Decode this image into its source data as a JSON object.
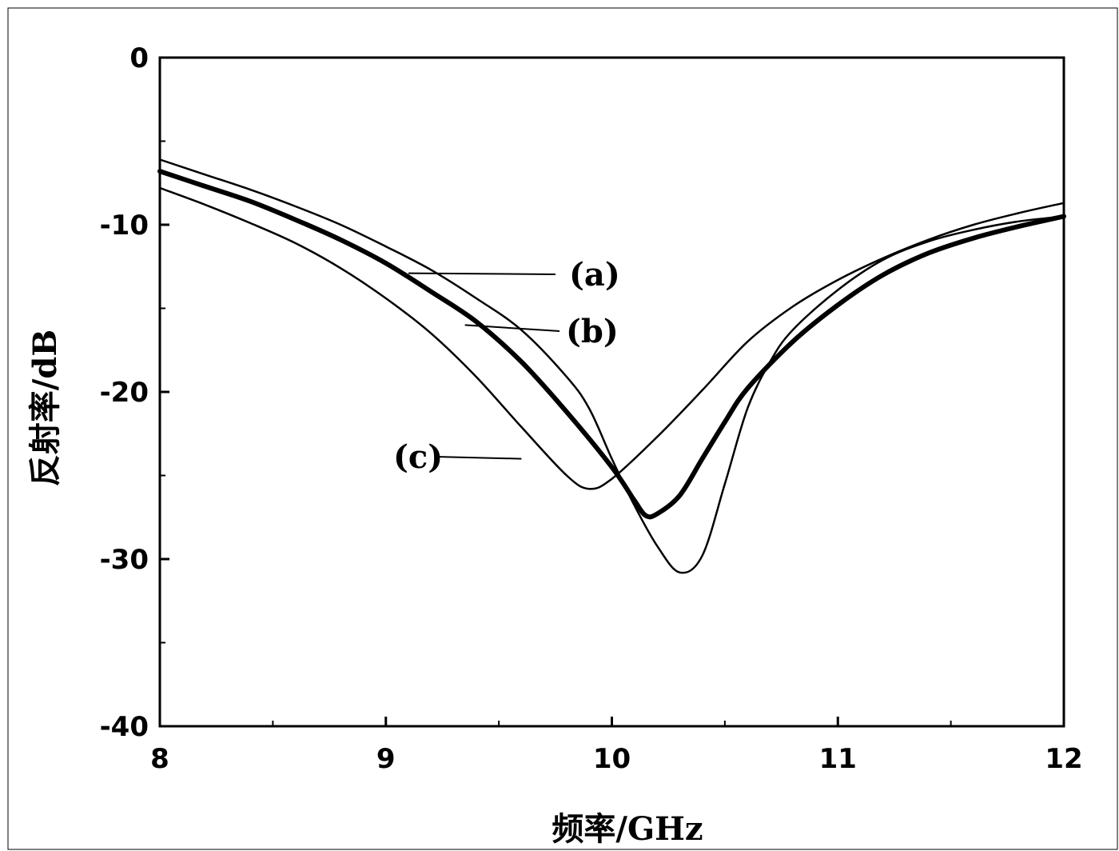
{
  "chart_data": {
    "type": "line",
    "title": "",
    "xlabel": "频率/GHz",
    "ylabel": "反射率/dB",
    "xlim": [
      8,
      12
    ],
    "ylim": [
      -40,
      0
    ],
    "x_ticks": [
      8,
      9,
      10,
      11,
      12
    ],
    "x_tick_labels": [
      "8",
      "9",
      "10",
      "11",
      "12"
    ],
    "y_ticks": [
      0,
      -10,
      -20,
      -30,
      -40
    ],
    "y_tick_labels": [
      "0",
      "-10",
      "-20",
      "-30",
      "-40"
    ],
    "grid": false,
    "legend": "none",
    "series": [
      {
        "name": "(a)",
        "color": "#000000",
        "style": "thin",
        "label_anchor": [
          9.1,
          -12.9
        ],
        "points": [
          [
            8.0,
            -6.1
          ],
          [
            8.2,
            -7.0
          ],
          [
            8.4,
            -7.9
          ],
          [
            8.6,
            -8.9
          ],
          [
            8.8,
            -10.0
          ],
          [
            9.0,
            -11.3
          ],
          [
            9.2,
            -12.7
          ],
          [
            9.4,
            -14.4
          ],
          [
            9.6,
            -16.3
          ],
          [
            9.8,
            -19.1
          ],
          [
            9.9,
            -21.0
          ],
          [
            10.0,
            -24.0
          ],
          [
            10.1,
            -26.8
          ],
          [
            10.2,
            -29.2
          ],
          [
            10.3,
            -30.8
          ],
          [
            10.4,
            -29.8
          ],
          [
            10.5,
            -25.5
          ],
          [
            10.6,
            -21.0
          ],
          [
            10.7,
            -18.2
          ],
          [
            10.8,
            -16.3
          ],
          [
            11.0,
            -13.9
          ],
          [
            11.2,
            -12.1
          ],
          [
            11.4,
            -11.0
          ],
          [
            11.6,
            -10.3
          ],
          [
            11.8,
            -9.8
          ],
          [
            12.0,
            -9.5
          ]
        ]
      },
      {
        "name": "(b)",
        "color": "#000000",
        "style": "thick",
        "label_anchor": [
          9.35,
          -16.0
        ],
        "points": [
          [
            8.0,
            -6.8
          ],
          [
            8.2,
            -7.7
          ],
          [
            8.4,
            -8.6
          ],
          [
            8.6,
            -9.7
          ],
          [
            8.8,
            -10.9
          ],
          [
            9.0,
            -12.3
          ],
          [
            9.2,
            -14.0
          ],
          [
            9.4,
            -15.8
          ],
          [
            9.6,
            -18.2
          ],
          [
            9.8,
            -21.2
          ],
          [
            10.0,
            -24.5
          ],
          [
            10.1,
            -26.5
          ],
          [
            10.15,
            -27.4
          ],
          [
            10.2,
            -27.3
          ],
          [
            10.3,
            -26.2
          ],
          [
            10.4,
            -24.0
          ],
          [
            10.5,
            -21.8
          ],
          [
            10.6,
            -19.8
          ],
          [
            10.8,
            -17.0
          ],
          [
            11.0,
            -14.8
          ],
          [
            11.2,
            -13.0
          ],
          [
            11.4,
            -11.7
          ],
          [
            11.6,
            -10.8
          ],
          [
            11.8,
            -10.1
          ],
          [
            12.0,
            -9.5
          ]
        ]
      },
      {
        "name": "(c)",
        "color": "#000000",
        "style": "thin",
        "label_anchor": [
          9.6,
          -24.0
        ],
        "points": [
          [
            8.0,
            -7.8
          ],
          [
            8.2,
            -8.8
          ],
          [
            8.4,
            -9.9
          ],
          [
            8.6,
            -11.1
          ],
          [
            8.8,
            -12.6
          ],
          [
            9.0,
            -14.4
          ],
          [
            9.2,
            -16.5
          ],
          [
            9.4,
            -19.1
          ],
          [
            9.6,
            -22.1
          ],
          [
            9.8,
            -25.0
          ],
          [
            9.9,
            -25.8
          ],
          [
            10.0,
            -25.2
          ],
          [
            10.2,
            -22.7
          ],
          [
            10.4,
            -19.9
          ],
          [
            10.6,
            -17.0
          ],
          [
            10.8,
            -14.9
          ],
          [
            11.0,
            -13.3
          ],
          [
            11.2,
            -12.0
          ],
          [
            11.4,
            -10.9
          ],
          [
            11.6,
            -10.0
          ],
          [
            11.8,
            -9.3
          ],
          [
            12.0,
            -8.7
          ]
        ]
      }
    ]
  }
}
